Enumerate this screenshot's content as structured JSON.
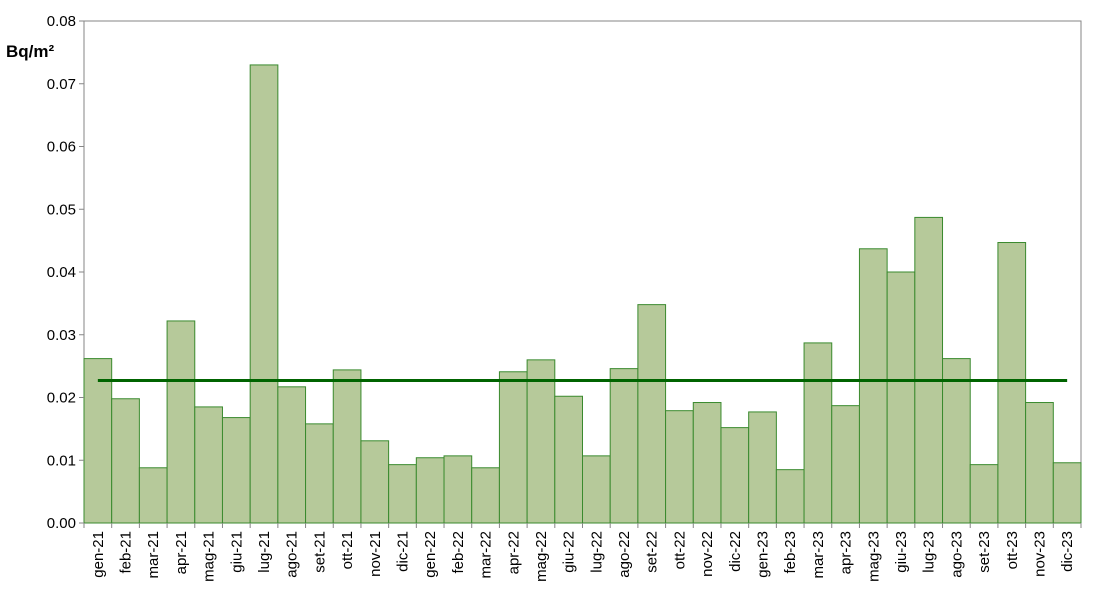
{
  "chart_data": {
    "type": "bar",
    "ylabel": "Bq/m²",
    "ylim": [
      0,
      0.08
    ],
    "yticks": [
      "0.00",
      "0.01",
      "0.02",
      "0.03",
      "0.04",
      "0.05",
      "0.06",
      "0.07",
      "0.08"
    ],
    "grid": false,
    "categories": [
      "gen-21",
      "feb-21",
      "mar-21",
      "apr-21",
      "mag-21",
      "giu-21",
      "lug-21",
      "ago-21",
      "set-21",
      "ott-21",
      "nov-21",
      "dic-21",
      "gen-22",
      "feb-22",
      "mar-22",
      "apr-22",
      "mag-22",
      "giu-22",
      "lug-22",
      "ago-22",
      "set-22",
      "ott-22",
      "nov-22",
      "dic-22",
      "gen-23",
      "feb-23",
      "mar-23",
      "apr-23",
      "mag-23",
      "giu-23",
      "lug-23",
      "ago-23",
      "set-23",
      "ott-23",
      "nov-23",
      "dic-23"
    ],
    "values": [
      0.0262,
      0.0198,
      0.0088,
      0.0322,
      0.0185,
      0.0168,
      0.073,
      0.0217,
      0.0158,
      0.0244,
      0.0131,
      0.0093,
      0.0104,
      0.0107,
      0.0088,
      0.0241,
      0.026,
      0.0202,
      0.0107,
      0.0246,
      0.0348,
      0.0179,
      0.0192,
      0.0152,
      0.0177,
      0.0085,
      0.0287,
      0.0187,
      0.0437,
      0.04,
      0.0487,
      0.0262,
      0.0093,
      0.0447,
      0.0192,
      0.0096
    ],
    "reference_line": 0.0227,
    "colors": {
      "bar_fill": "#b6c99a",
      "bar_stroke": "#3a8a2e",
      "line": "#006400",
      "axis": "#868686"
    }
  }
}
